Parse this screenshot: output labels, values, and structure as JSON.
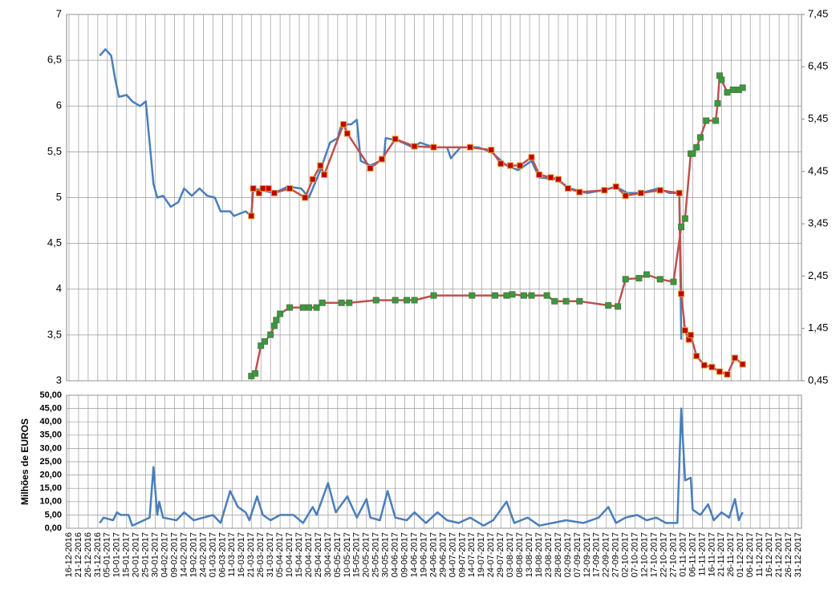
{
  "chart_data": [
    {
      "type": "line",
      "ylim": [
        3,
        7
      ],
      "yticks": [
        3,
        {
          "value": 3.5,
          "label": "3,5"
        },
        4,
        {
          "value": 4.5,
          "label": "4,5"
        },
        5,
        {
          "value": 5.5,
          "label": "5,5"
        },
        6,
        {
          "value": 6.5,
          "label": "6,5"
        },
        7
      ],
      "y2lim": [
        0.45,
        7.45
      ],
      "y2ticks": [
        {
          "value": 0.45,
          "label": "0,45"
        },
        {
          "value": 1.45,
          "label": "1,45"
        },
        {
          "value": 2.45,
          "label": "2,45"
        },
        {
          "value": 3.45,
          "label": "3,45"
        },
        {
          "value": 4.45,
          "label": "4,45"
        },
        {
          "value": 5.45,
          "label": "5,45"
        },
        {
          "value": 6.45,
          "label": "6,45"
        },
        {
          "value": 7.45,
          "label": "7,45"
        }
      ],
      "grid": true,
      "series": [
        {
          "color": "#4a7ebb",
          "axis": "y",
          "x": [
            "01-01-2017",
            "04-01-2017",
            "07-01-2017",
            "09-01-2017",
            "11-01-2017",
            "15-01-2017",
            "18-01-2017",
            "22-01-2017",
            "25-01-2017",
            "27-01-2017",
            "29-01-2017",
            "31-01-2017",
            "03-02-2017",
            "07-02-2017",
            "11-02-2017",
            "14-02-2017",
            "18-02-2017",
            "22-02-2017",
            "26-02-2017",
            "02-03-2017",
            "05-03-2017",
            "10-03-2017",
            "12-03-2017",
            "18-03-2017",
            "21-03-2017",
            "22-03-2017",
            "02-04-2017",
            "09-04-2017",
            "16-04-2017",
            "20-04-2017",
            "26-04-2017",
            "01-05-2017",
            "05-05-2017",
            "07-05-2017",
            "12-05-2017",
            "15-05-2017",
            "17-05-2017",
            "22-05-2017",
            "29-05-2017",
            "30-05-2017",
            "06-06-2017",
            "13-06-2017",
            "17-06-2017",
            "24-06-2017",
            "01-07-2017",
            "03-07-2017",
            "08-07-2017",
            "17-07-2017",
            "24-07-2017",
            "01-08-2017",
            "07-08-2017",
            "14-08-2017",
            "18-08-2017",
            "27-08-2017",
            "03-09-2017",
            "12-09-2017",
            "20-09-2017",
            "27-09-2017",
            "03-10-2017",
            "10-10-2017",
            "19-10-2017",
            "25-10-2017",
            "30-10-2017",
            "31-10-2017"
          ],
          "values": [
            6.55,
            6.62,
            6.55,
            6.3,
            6.1,
            6.12,
            6.05,
            6.0,
            6.05,
            5.6,
            5.15,
            5.0,
            5.02,
            4.9,
            4.95,
            5.1,
            5.02,
            5.1,
            5.02,
            5.0,
            4.85,
            4.85,
            4.8,
            4.85,
            4.8,
            5.1,
            5.05,
            5.12,
            5.1,
            5.0,
            5.3,
            5.6,
            5.65,
            5.8,
            5.8,
            5.85,
            5.4,
            5.35,
            5.42,
            5.65,
            5.62,
            5.55,
            5.6,
            5.55,
            5.55,
            5.43,
            5.55,
            5.55,
            5.5,
            5.35,
            5.3,
            5.4,
            5.22,
            5.2,
            5.1,
            5.05,
            5.08,
            5.12,
            5.05,
            5.05,
            5.1,
            5.05,
            5.05,
            3.45
          ]
        },
        {
          "color": "#c0504d",
          "marker_color": "#c00000",
          "marker_edge": "#e0a030",
          "axis": "y",
          "x": [
            "21-03-2017",
            "22-03-2017",
            "25-03-2017",
            "27-03-2017",
            "30-03-2017",
            "02-04-2017",
            "10-04-2017",
            "18-04-2017",
            "22-04-2017",
            "26-04-2017",
            "28-04-2017",
            "08-05-2017",
            "10-05-2017",
            "22-05-2017",
            "28-05-2017",
            "04-06-2017",
            "14-06-2017",
            "24-06-2017",
            "13-07-2017",
            "24-07-2017",
            "29-07-2017",
            "03-08-2017",
            "08-08-2017",
            "14-08-2017",
            "18-08-2017",
            "24-08-2017",
            "28-08-2017",
            "02-09-2017",
            "08-09-2017",
            "21-09-2017",
            "27-09-2017",
            "02-10-2017",
            "10-10-2017",
            "20-10-2017",
            "30-10-2017",
            "31-10-2017",
            "02-11-2017",
            "04-11-2017",
            "05-11-2017",
            "08-11-2017",
            "12-11-2017",
            "16-11-2017",
            "20-11-2017",
            "24-11-2017",
            "28-11-2017",
            "02-12-2017"
          ],
          "values": [
            4.8,
            5.1,
            5.05,
            5.1,
            5.1,
            5.05,
            5.1,
            5.0,
            5.2,
            5.35,
            5.25,
            5.8,
            5.7,
            5.32,
            5.42,
            5.64,
            5.56,
            5.55,
            5.55,
            5.52,
            5.37,
            5.35,
            5.35,
            5.44,
            5.25,
            5.22,
            5.2,
            5.1,
            5.06,
            5.08,
            5.12,
            5.02,
            5.05,
            5.08,
            5.05,
            3.95,
            3.55,
            3.45,
            3.5,
            3.27,
            3.17,
            3.15,
            3.1,
            3.07,
            3.25,
            3.18
          ]
        },
        {
          "color": "#c0504d",
          "marker_color": "#3a9a3a",
          "marker_edge": "#4a7a4a",
          "axis": "y2",
          "x": [
            "21-03-2017",
            "23-03-2017",
            "26-03-2017",
            "28-03-2017",
            "31-03-2017",
            "02-04-2017",
            "03-04-2017",
            "05-04-2017",
            "10-04-2017",
            "17-04-2017",
            "20-04-2017",
            "24-04-2017",
            "27-04-2017",
            "07-05-2017",
            "11-05-2017",
            "25-05-2017",
            "04-06-2017",
            "10-06-2017",
            "14-06-2017",
            "24-06-2017",
            "14-07-2017",
            "26-07-2017",
            "01-08-2017",
            "04-08-2017",
            "10-08-2017",
            "14-08-2017",
            "22-08-2017",
            "26-08-2017",
            "01-09-2017",
            "08-09-2017",
            "23-09-2017",
            "28-09-2017",
            "02-10-2017",
            "09-10-2017",
            "13-10-2017",
            "20-10-2017",
            "27-10-2017",
            "31-10-2017",
            "02-11-2017",
            "05-11-2017",
            "06-11-2017",
            "08-11-2017",
            "10-11-2017",
            "13-11-2017",
            "18-11-2017",
            "19-11-2017",
            "20-11-2017",
            "21-11-2017",
            "24-11-2017",
            "27-11-2017",
            "30-11-2017",
            "02-12-2017"
          ],
          "values": [
            0.54,
            0.59,
            1.12,
            1.2,
            1.33,
            1.5,
            1.61,
            1.73,
            1.85,
            1.85,
            1.85,
            1.85,
            1.94,
            1.94,
            1.94,
            1.99,
            1.99,
            1.99,
            1.99,
            2.08,
            2.08,
            2.08,
            2.08,
            2.1,
            2.08,
            2.08,
            2.08,
            1.97,
            1.97,
            1.97,
            1.89,
            1.87,
            2.39,
            2.41,
            2.48,
            2.39,
            2.34,
            3.39,
            3.55,
            4.79,
            4.79,
            4.91,
            5.1,
            5.42,
            5.42,
            5.75,
            6.28,
            6.2,
            5.96,
            6.01,
            6.01,
            6.05
          ]
        }
      ]
    },
    {
      "type": "line",
      "ylabel": "Milhões de EUROS",
      "ylim": [
        0,
        50
      ],
      "yticks": [
        {
          "value": 0,
          "label": "0,00"
        },
        {
          "value": 5,
          "label": "5,00"
        },
        {
          "value": 10,
          "label": "10,00"
        },
        {
          "value": 15,
          "label": "15,00"
        },
        {
          "value": 20,
          "label": "20,00"
        },
        {
          "value": 25,
          "label": "25,00"
        },
        {
          "value": 30,
          "label": "30,00"
        },
        {
          "value": 35,
          "label": "35,00"
        },
        {
          "value": 40,
          "label": "40,00"
        },
        {
          "value": 45,
          "label": "45,00"
        },
        {
          "value": 50,
          "label": "50,00"
        }
      ],
      "grid": true,
      "xlim": [
        "16-12-2016",
        "31-12-2017"
      ],
      "xticks": [
        "16-12-2016",
        "21-12-2016",
        "26-12-2016",
        "31-12-2016",
        "05-01-2017",
        "10-01-2017",
        "15-01-2017",
        "20-01-2017",
        "25-01-2017",
        "30-01-2017",
        "04-02-2017",
        "09-02-2017",
        "14-02-2017",
        "19-02-2017",
        "24-02-2017",
        "01-03-2017",
        "06-03-2017",
        "11-03-2017",
        "16-03-2017",
        "21-03-2017",
        "26-03-2017",
        "31-03-2017",
        "05-04-2017",
        "10-04-2017",
        "15-04-2017",
        "20-04-2017",
        "25-04-2017",
        "30-04-2017",
        "05-05-2017",
        "10-05-2017",
        "15-05-2017",
        "20-05-2017",
        "25-05-2017",
        "30-05-2017",
        "04-06-2017",
        "09-06-2017",
        "14-06-2017",
        "19-06-2017",
        "24-06-2017",
        "29-06-2017",
        "04-07-2017",
        "09-07-2017",
        "14-07-2017",
        "19-07-2017",
        "24-07-2017",
        "29-07-2017",
        "03-08-2017",
        "08-08-2017",
        "13-08-2017",
        "18-08-2017",
        "23-08-2017",
        "28-08-2017",
        "02-09-2017",
        "07-09-2017",
        "12-09-2017",
        "17-09-2017",
        "22-09-2017",
        "27-09-2017",
        "02-10-2017",
        "07-10-2017",
        "12-10-2017",
        "17-10-2017",
        "22-10-2017",
        "27-10-2017",
        "01-11-2017",
        "06-11-2017",
        "11-11-2017",
        "16-11-2017",
        "21-11-2017",
        "26-11-2017",
        "01-12-2017",
        "06-12-2017",
        "11-12-2017",
        "16-12-2017",
        "21-12-2017",
        "26-12-2017",
        "31-12-2017"
      ],
      "series": [
        {
          "color": "#4a7ebb",
          "x": [
            "01-01-2017",
            "03-01-2017",
            "08-01-2017",
            "10-01-2017",
            "12-01-2017",
            "16-01-2017",
            "18-01-2017",
            "24-01-2017",
            "27-01-2017",
            "29-01-2017",
            "31-01-2017",
            "01-02-2017",
            "03-02-2017",
            "10-02-2017",
            "14-02-2017",
            "19-02-2017",
            "24-02-2017",
            "01-03-2017",
            "05-03-2017",
            "10-03-2017",
            "14-03-2017",
            "18-03-2017",
            "20-03-2017",
            "24-03-2017",
            "27-03-2017",
            "31-03-2017",
            "05-04-2017",
            "12-04-2017",
            "17-04-2017",
            "22-04-2017",
            "24-04-2017",
            "30-04-2017",
            "04-05-2017",
            "10-05-2017",
            "15-05-2017",
            "20-05-2017",
            "22-05-2017",
            "27-05-2017",
            "31-05-2017",
            "04-06-2017",
            "10-06-2017",
            "14-06-2017",
            "20-06-2017",
            "26-06-2017",
            "01-07-2017",
            "07-07-2017",
            "13-07-2017",
            "20-07-2017",
            "25-07-2017",
            "01-08-2017",
            "05-08-2017",
            "12-08-2017",
            "18-08-2017",
            "25-08-2017",
            "01-09-2017",
            "10-09-2017",
            "18-09-2017",
            "23-09-2017",
            "27-09-2017",
            "02-10-2017",
            "08-10-2017",
            "13-10-2017",
            "18-10-2017",
            "23-10-2017",
            "29-10-2017",
            "31-10-2017",
            "02-11-2017",
            "05-11-2017",
            "06-11-2017",
            "10-11-2017",
            "14-11-2017",
            "17-11-2017",
            "21-11-2017",
            "25-11-2017",
            "28-11-2017",
            "30-11-2017",
            "02-12-2017"
          ],
          "values": [
            2,
            4,
            3,
            6,
            5,
            5,
            1,
            3,
            4,
            23,
            5,
            10,
            4,
            3,
            6,
            3,
            4,
            5,
            2,
            14,
            8,
            6,
            3,
            12,
            5,
            3,
            5,
            5,
            2,
            8,
            5,
            17,
            6,
            12,
            4,
            11,
            4,
            3,
            14,
            4,
            3,
            6,
            2,
            6,
            3,
            2,
            4,
            1,
            3,
            10,
            2,
            4,
            1,
            2,
            3,
            2,
            4,
            8,
            2,
            4,
            5,
            3,
            4,
            2,
            2,
            45,
            18,
            19,
            7,
            5,
            9,
            3,
            6,
            4,
            11,
            3,
            6
          ]
        }
      ]
    }
  ]
}
